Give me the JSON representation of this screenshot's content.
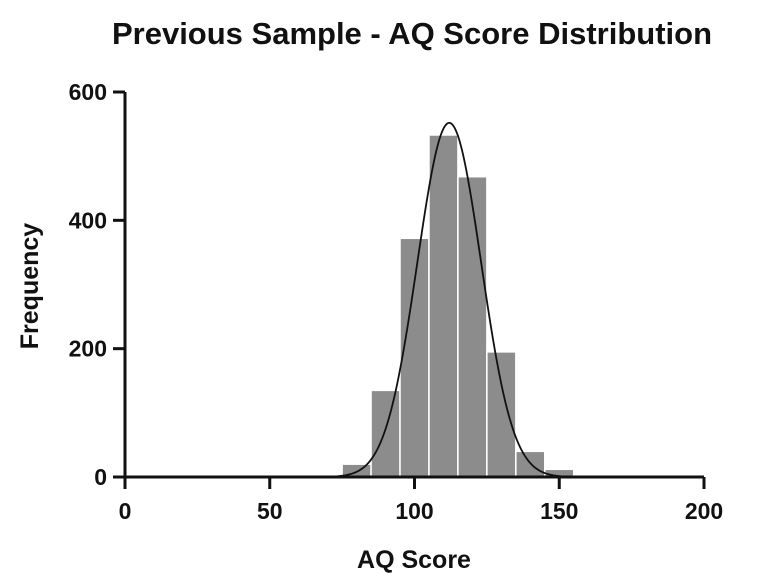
{
  "chart_data": {
    "type": "bar",
    "title": "Previous Sample - AQ Score Distribution",
    "xlabel": "AQ Score",
    "ylabel": "Frequency",
    "xlim": [
      0,
      200
    ],
    "ylim": [
      0,
      600
    ],
    "xticks": [
      "0",
      "50",
      "100",
      "150",
      "200"
    ],
    "yticks": [
      "0",
      "200",
      "400",
      "600"
    ],
    "bin_width": 10,
    "bins": [
      {
        "start": 65,
        "end": 75,
        "value": 2
      },
      {
        "start": 75,
        "end": 85,
        "value": 20
      },
      {
        "start": 85,
        "end": 95,
        "value": 135
      },
      {
        "start": 95,
        "end": 105,
        "value": 372
      },
      {
        "start": 105,
        "end": 115,
        "value": 533
      },
      {
        "start": 115,
        "end": 125,
        "value": 468
      },
      {
        "start": 125,
        "end": 135,
        "value": 195
      },
      {
        "start": 135,
        "end": 145,
        "value": 40
      },
      {
        "start": 145,
        "end": 155,
        "value": 12
      }
    ],
    "fit_curve": {
      "type": "normal",
      "mean": 112,
      "sd": 11,
      "peak": 552
    },
    "bar_color": "#8c8c8c",
    "curve_color": "#111111",
    "grid": false,
    "legend": "none"
  }
}
